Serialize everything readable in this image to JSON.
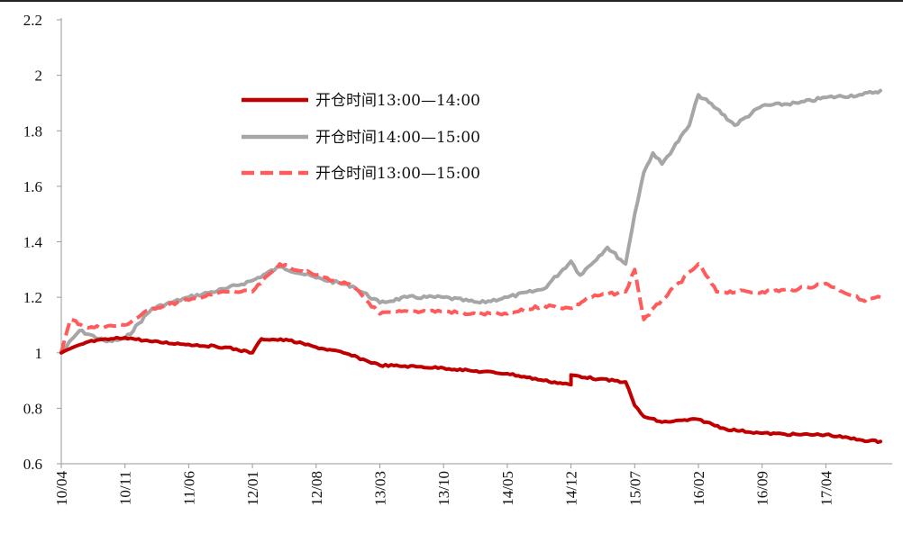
{
  "chart_data": {
    "type": "line",
    "title": "",
    "xlabel": "",
    "ylabel": "",
    "ylim": [
      0.6,
      2.2
    ],
    "yticks": [
      "0.6",
      "0.8",
      "1",
      "1.2",
      "1.4",
      "1.6",
      "1.8",
      "2",
      "2.2"
    ],
    "xticks": [
      "10/04",
      "10/11",
      "11/06",
      "12/01",
      "12/08",
      "13/03",
      "13/10",
      "14/05",
      "14/12",
      "15/07",
      "16/02",
      "16/09",
      "17/04"
    ],
    "grid": false,
    "legend_position": "upper-center",
    "series": [
      {
        "name": "开仓时间13:00—14:00",
        "color": "#c00000",
        "style": "solid",
        "x": [
          "10/04",
          "10/07",
          "10/11",
          "11/02",
          "11/06",
          "11/10",
          "12/01",
          "12/02",
          "12/05",
          "12/08",
          "12/11",
          "13/03",
          "13/07",
          "13/10",
          "14/01",
          "14/05",
          "14/09",
          "14/12",
          "14/12",
          "15/03",
          "15/06",
          "15/07",
          "15/08",
          "15/10",
          "16/02",
          "16/05",
          "16/09",
          "17/01",
          "17/04",
          "17/08",
          "17/10"
        ],
        "values": [
          1.0,
          1.04,
          1.055,
          1.04,
          1.03,
          1.02,
          1.0,
          1.05,
          1.045,
          1.02,
          1.0,
          0.955,
          0.95,
          0.945,
          0.935,
          0.925,
          0.9,
          0.885,
          0.92,
          0.905,
          0.895,
          0.81,
          0.77,
          0.75,
          0.76,
          0.725,
          0.71,
          0.705,
          0.705,
          0.685,
          0.68
        ]
      },
      {
        "name": "开仓时间14:00—15:00",
        "color": "#a6a6a6",
        "style": "solid",
        "x": [
          "10/04",
          "10/06",
          "10/09",
          "10/11",
          "11/02",
          "11/06",
          "11/10",
          "12/01",
          "12/04",
          "12/08",
          "12/12",
          "13/03",
          "13/06",
          "13/10",
          "14/02",
          "14/05",
          "14/09",
          "14/12",
          "15/01",
          "15/04",
          "15/06",
          "15/07",
          "15/08",
          "15/09",
          "15/10",
          "16/01",
          "16/02",
          "16/04",
          "16/06",
          "16/09",
          "17/01",
          "17/04",
          "17/08",
          "17/10"
        ],
        "values": [
          1.0,
          1.08,
          1.04,
          1.05,
          1.16,
          1.2,
          1.23,
          1.26,
          1.31,
          1.27,
          1.24,
          1.18,
          1.2,
          1.2,
          1.18,
          1.2,
          1.23,
          1.33,
          1.28,
          1.38,
          1.32,
          1.5,
          1.65,
          1.72,
          1.68,
          1.82,
          1.93,
          1.88,
          1.82,
          1.89,
          1.9,
          1.92,
          1.93,
          1.945
        ]
      },
      {
        "name": "开仓时间13:00—15:00",
        "color": "#ff5b5b",
        "style": "dashed",
        "x": [
          "10/04",
          "10/05",
          "10/07",
          "10/11",
          "11/02",
          "11/06",
          "11/10",
          "12/01",
          "12/04",
          "12/08",
          "12/12",
          "13/03",
          "13/06",
          "13/10",
          "14/01",
          "14/05",
          "14/09",
          "14/12",
          "15/02",
          "15/06",
          "15/07",
          "15/08",
          "15/10",
          "16/02",
          "16/04",
          "16/09",
          "17/01",
          "17/04",
          "17/08",
          "17/10"
        ],
        "values": [
          1.0,
          1.12,
          1.09,
          1.1,
          1.16,
          1.19,
          1.22,
          1.22,
          1.32,
          1.28,
          1.24,
          1.14,
          1.15,
          1.15,
          1.14,
          1.14,
          1.17,
          1.16,
          1.2,
          1.22,
          1.3,
          1.12,
          1.19,
          1.32,
          1.22,
          1.22,
          1.23,
          1.25,
          1.19,
          1.2
        ]
      }
    ]
  }
}
